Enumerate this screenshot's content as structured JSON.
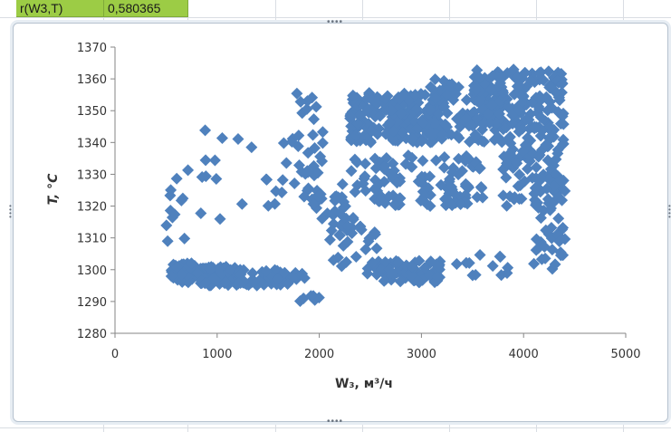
{
  "sheet": {
    "cell_label": "r(W3,T)",
    "cell_value": "0,580365"
  },
  "colors": {
    "marker": "#4f81bd",
    "cell_fill": "#9ccc45",
    "frame": "#b6c2cf"
  },
  "chart_data": {
    "type": "scatter",
    "marker": "diamond",
    "title": "",
    "xlabel": "W₃, м³/ч",
    "ylabel": "T, °C",
    "xlim": [
      0,
      5000
    ],
    "ylim": [
      1280,
      1370
    ],
    "xticks": [
      "0",
      "1000",
      "2000",
      "3000",
      "4000",
      "5000"
    ],
    "yticks": [
      "1280",
      "1290",
      "1300",
      "1310",
      "1320",
      "1330",
      "1340",
      "1350",
      "1360",
      "1370"
    ],
    "grid": false,
    "legend": "none",
    "clusters": [
      {
        "x": [
          550,
          800
        ],
        "y": [
          1296,
          1302
        ],
        "count": 60
      },
      {
        "x": [
          800,
          1200
        ],
        "y": [
          1295,
          1301
        ],
        "count": 70
      },
      {
        "x": [
          1200,
          1780
        ],
        "y": [
          1295,
          1300
        ],
        "count": 60
      },
      {
        "x": [
          500,
          700
        ],
        "y": [
          1308,
          1330
        ],
        "count": 10
      },
      {
        "x": [
          600,
          1400
        ],
        "y": [
          1315,
          1345
        ],
        "count": 14
      },
      {
        "x": [
          1400,
          2000
        ],
        "y": [
          1320,
          1330
        ],
        "count": 14
      },
      {
        "x": [
          1650,
          2050
        ],
        "y": [
          1330,
          1356
        ],
        "count": 28
      },
      {
        "x": [
          1900,
          2300
        ],
        "y": [
          1312,
          1325
        ],
        "count": 20
      },
      {
        "x": [
          2100,
          2600
        ],
        "y": [
          1298,
          1335
        ],
        "count": 60
      },
      {
        "x": [
          2300,
          3200
        ],
        "y": [
          1340,
          1356
        ],
        "count": 200
      },
      {
        "x": [
          2600,
          3200
        ],
        "y": [
          1296,
          1303
        ],
        "count": 70
      },
      {
        "x": [
          2600,
          3600
        ],
        "y": [
          1320,
          1336
        ],
        "count": 90
      },
      {
        "x": [
          3000,
          3800
        ],
        "y": [
          1340,
          1360
        ],
        "count": 110
      },
      {
        "x": [
          3500,
          4400
        ],
        "y": [
          1344,
          1363
        ],
        "count": 170
      },
      {
        "x": [
          3800,
          4400
        ],
        "y": [
          1320,
          1345
        ],
        "count": 90
      },
      {
        "x": [
          4100,
          4420
        ],
        "y": [
          1300,
          1330
        ],
        "count": 50
      },
      {
        "x": [
          3300,
          3900
        ],
        "y": [
          1298,
          1306
        ],
        "count": 12
      },
      {
        "x": [
          1800,
          2000
        ],
        "y": [
          1290,
          1301
        ],
        "count": 8
      }
    ]
  }
}
